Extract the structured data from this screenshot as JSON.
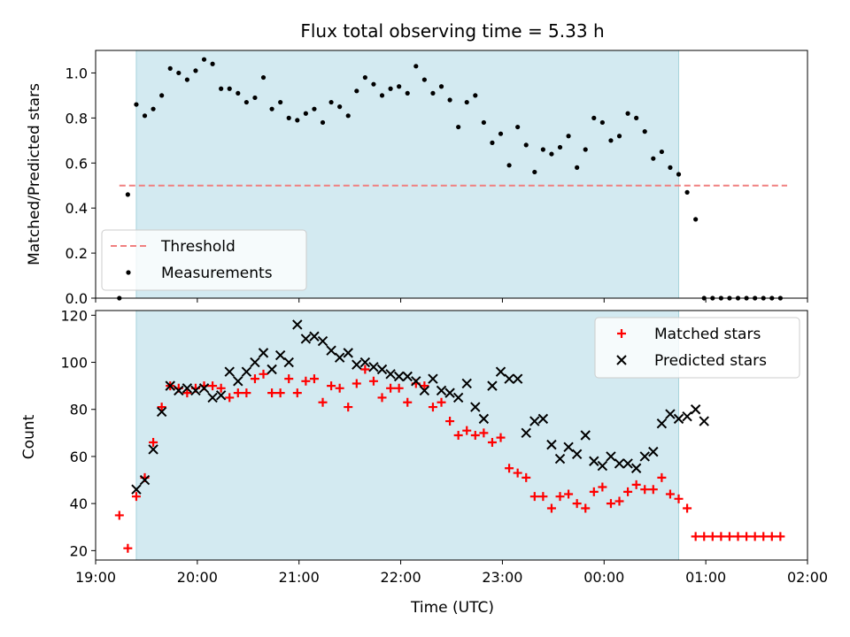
{
  "chart_data": [
    {
      "type": "scatter",
      "title": "Flux total observing time = 5.33 h",
      "xlabel": "",
      "ylabel": "Matched/Predicted stars",
      "xlim": [
        "19:00",
        "02:00"
      ],
      "ylim": [
        0,
        1.1
      ],
      "x_ticks": [
        "19:00",
        "20:00",
        "21:00",
        "22:00",
        "23:00",
        "00:00",
        "01:00",
        "02:00"
      ],
      "y_ticks": [
        "0.0",
        "0.2",
        "0.4",
        "0.6",
        "0.8",
        "1.0"
      ],
      "observing_window": [
        "19:24",
        "00:44"
      ],
      "legend": {
        "placement": "lower-left",
        "entries": [
          "Threshold",
          "Measurements"
        ]
      },
      "colors": {
        "band": "#d3eaf1",
        "threshold": "#f08080",
        "measurements": "#000000"
      },
      "series": [
        {
          "name": "Threshold",
          "type": "line",
          "style": "dashed",
          "x": [
            "19:14",
            "01:48"
          ],
          "y": [
            0.5,
            0.5
          ]
        },
        {
          "name": "Measurements",
          "type": "scatter",
          "x": [
            "19:14",
            "19:19",
            "19:24",
            "19:29",
            "19:34",
            "19:39",
            "19:44",
            "19:49",
            "19:54",
            "19:59",
            "20:04",
            "20:09",
            "20:14",
            "20:19",
            "20:24",
            "20:29",
            "20:34",
            "20:39",
            "20:44",
            "20:49",
            "20:54",
            "20:59",
            "21:04",
            "21:09",
            "21:14",
            "21:19",
            "21:24",
            "21:29",
            "21:34",
            "21:39",
            "21:44",
            "21:49",
            "21:54",
            "21:59",
            "22:04",
            "22:09",
            "22:14",
            "22:19",
            "22:24",
            "22:29",
            "22:34",
            "22:39",
            "22:44",
            "22:49",
            "22:54",
            "22:59",
            "23:04",
            "23:09",
            "23:14",
            "23:19",
            "23:24",
            "23:29",
            "23:34",
            "23:39",
            "23:44",
            "23:49",
            "23:54",
            "23:59",
            "00:04",
            "00:09",
            "00:14",
            "00:19",
            "00:24",
            "00:29",
            "00:34",
            "00:39",
            "00:44",
            "00:49",
            "00:54",
            "00:59",
            "01:04",
            "01:09",
            "01:14",
            "01:19",
            "01:24",
            "01:29",
            "01:34",
            "01:39",
            "01:44"
          ],
          "y": [
            0.0,
            0.46,
            0.86,
            0.81,
            0.84,
            0.9,
            1.02,
            1.0,
            0.97,
            1.01,
            1.06,
            1.04,
            0.93,
            0.93,
            0.91,
            0.87,
            0.89,
            0.98,
            0.84,
            0.87,
            0.8,
            0.79,
            0.82,
            0.84,
            0.78,
            0.87,
            0.85,
            0.81,
            0.92,
            0.98,
            0.95,
            0.9,
            0.93,
            0.94,
            0.91,
            1.03,
            0.97,
            0.91,
            0.94,
            0.88,
            0.76,
            0.87,
            0.9,
            0.78,
            0.69,
            0.73,
            0.59,
            0.76,
            0.68,
            0.56,
            0.66,
            0.64,
            0.67,
            0.72,
            0.58,
            0.66,
            0.8,
            0.78,
            0.7,
            0.72,
            0.82,
            0.8,
            0.74,
            0.62,
            0.65,
            0.58,
            0.55,
            0.47,
            0.35,
            0.0,
            0.0,
            0.0,
            0.0,
            0.0,
            0.0,
            0.0,
            0.0,
            0.0,
            0.0
          ]
        }
      ]
    },
    {
      "type": "scatter",
      "title": "",
      "xlabel": "Time (UTC)",
      "ylabel": "Count",
      "xlim": [
        "19:00",
        "02:00"
      ],
      "ylim": [
        16,
        122
      ],
      "x_ticks": [
        "19:00",
        "20:00",
        "21:00",
        "22:00",
        "23:00",
        "00:00",
        "01:00",
        "02:00"
      ],
      "y_ticks": [
        "20",
        "40",
        "60",
        "80",
        "100",
        "120"
      ],
      "observing_window": [
        "19:24",
        "00:44"
      ],
      "legend": {
        "placement": "upper-right",
        "entries": [
          "Matched stars",
          "Predicted stars"
        ]
      },
      "colors": {
        "band": "#d3eaf1",
        "matched": "#ff0000",
        "predicted": "#000000"
      },
      "series": [
        {
          "name": "Matched stars",
          "marker": "plus",
          "x": [
            "19:14",
            "19:19",
            "19:24",
            "19:29",
            "19:34",
            "19:39",
            "19:44",
            "19:49",
            "19:54",
            "19:59",
            "20:04",
            "20:09",
            "20:14",
            "20:19",
            "20:24",
            "20:29",
            "20:34",
            "20:39",
            "20:44",
            "20:49",
            "20:54",
            "20:59",
            "21:04",
            "21:09",
            "21:14",
            "21:19",
            "21:24",
            "21:29",
            "21:34",
            "21:39",
            "21:44",
            "21:49",
            "21:54",
            "21:59",
            "22:04",
            "22:09",
            "22:14",
            "22:19",
            "22:24",
            "22:29",
            "22:34",
            "22:39",
            "22:44",
            "22:49",
            "22:54",
            "22:59",
            "23:04",
            "23:09",
            "23:14",
            "23:19",
            "23:24",
            "23:29",
            "23:34",
            "23:39",
            "23:44",
            "23:49",
            "23:54",
            "23:59",
            "00:04",
            "00:09",
            "00:14",
            "00:19",
            "00:24",
            "00:29",
            "00:34",
            "00:39",
            "00:44",
            "00:49",
            "00:54",
            "00:59",
            "01:04",
            "01:09",
            "01:14",
            "01:19",
            "01:24",
            "01:29",
            "01:34",
            "01:39",
            "01:44"
          ],
          "y": [
            35,
            21,
            43,
            51,
            66,
            81,
            90,
            89,
            87,
            89,
            90,
            90,
            89,
            85,
            87,
            87,
            93,
            95,
            87,
            87,
            93,
            87,
            92,
            93,
            83,
            90,
            89,
            81,
            91,
            97,
            92,
            85,
            89,
            89,
            83,
            91,
            90,
            81,
            83,
            75,
            69,
            71,
            69,
            70,
            66,
            68,
            55,
            53,
            51,
            43,
            43,
            38,
            43,
            44,
            40,
            38,
            45,
            47,
            40,
            41,
            45,
            48,
            46,
            46,
            51,
            44,
            42,
            38,
            26,
            26,
            26,
            26,
            26,
            26,
            26,
            26,
            26,
            26,
            26
          ]
        },
        {
          "name": "Predicted stars",
          "marker": "x",
          "x": [
            "19:24",
            "19:29",
            "19:34",
            "19:39",
            "19:44",
            "19:49",
            "19:54",
            "19:59",
            "20:04",
            "20:09",
            "20:14",
            "20:19",
            "20:24",
            "20:29",
            "20:34",
            "20:39",
            "20:44",
            "20:49",
            "20:54",
            "20:59",
            "21:04",
            "21:09",
            "21:14",
            "21:19",
            "21:24",
            "21:29",
            "21:34",
            "21:39",
            "21:44",
            "21:49",
            "21:54",
            "21:59",
            "22:04",
            "22:09",
            "22:14",
            "22:19",
            "22:24",
            "22:29",
            "22:34",
            "22:39",
            "22:44",
            "22:49",
            "22:54",
            "22:59",
            "23:04",
            "23:09",
            "23:14",
            "23:19",
            "23:24",
            "23:29",
            "23:34",
            "23:39",
            "23:44",
            "23:49",
            "23:54",
            "23:59",
            "00:04",
            "00:09",
            "00:14",
            "00:19",
            "00:24",
            "00:29",
            "00:34",
            "00:39",
            "00:44",
            "00:49",
            "00:54",
            "00:59"
          ],
          "y": [
            46,
            50,
            63,
            79,
            90,
            88,
            89,
            88,
            89,
            85,
            86,
            96,
            92,
            96,
            100,
            104,
            97,
            103,
            100,
            116,
            110,
            111,
            109,
            105,
            102,
            104,
            99,
            100,
            98,
            97,
            95,
            94,
            94,
            92,
            88,
            93,
            88,
            87,
            85,
            91,
            81,
            76,
            90,
            96,
            93,
            93,
            70,
            75,
            76,
            65,
            59,
            64,
            61,
            69,
            58,
            56,
            60,
            57,
            57,
            55,
            60,
            62,
            74,
            78,
            76,
            77,
            80,
            75
          ]
        }
      ]
    }
  ]
}
